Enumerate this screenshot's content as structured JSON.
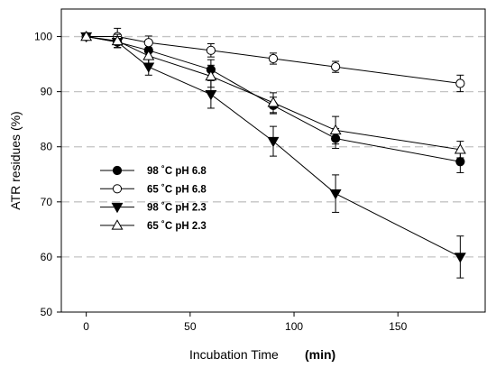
{
  "chart_data": {
    "type": "line",
    "xlabel": "Incubation Time",
    "xlabel_unit": "(min)",
    "ylabel": "ATR residues (%)",
    "xlim": [
      -12,
      192
    ],
    "ylim": [
      50,
      105
    ],
    "xticks": [
      0,
      50,
      100,
      150
    ],
    "yticks": [
      50,
      60,
      70,
      80,
      90,
      100
    ],
    "grid": "horizontal-dashed",
    "legend_position": "center-left",
    "highlight_color": "#e8321c",
    "series": [
      {
        "name": "98 ˚C pH 6.8",
        "marker": "filled-circle",
        "label_color": "#000000",
        "x": [
          0,
          15,
          30,
          60,
          90,
          120,
          180
        ],
        "y": [
          100,
          99.0,
          97.5,
          94.0,
          87.5,
          81.5,
          77.3
        ],
        "err": [
          0,
          1.0,
          1.2,
          1.8,
          1.5,
          1.8,
          2.0
        ]
      },
      {
        "name": "65 ˚C pH 6.8",
        "marker": "open-circle",
        "label_color": "#000000",
        "x": [
          0,
          15,
          30,
          60,
          90,
          120,
          180
        ],
        "y": [
          100,
          100,
          98.9,
          97.5,
          96.0,
          94.5,
          91.5
        ],
        "err": [
          0,
          1.5,
          1.2,
          1.2,
          1.0,
          1.0,
          1.5
        ]
      },
      {
        "name": "98 ˚C pH 2.3",
        "marker": "filled-triangle-down",
        "label_color": "#e8321c",
        "x": [
          0,
          15,
          30,
          60,
          90,
          120,
          180
        ],
        "y": [
          100,
          99.0,
          94.5,
          89.5,
          81.0,
          71.5,
          60.0
        ],
        "err": [
          0,
          1.0,
          1.5,
          2.5,
          2.7,
          3.4,
          3.8
        ]
      },
      {
        "name": "65 ˚C pH 2.3",
        "marker": "open-triangle-up",
        "label_color": "#000000",
        "x": [
          0,
          15,
          30,
          60,
          90,
          120,
          180
        ],
        "y": [
          100,
          99.2,
          96.5,
          92.8,
          88.0,
          83.0,
          79.5
        ],
        "err": [
          0,
          1.2,
          1.5,
          2.0,
          1.8,
          2.5,
          1.5
        ]
      }
    ]
  }
}
